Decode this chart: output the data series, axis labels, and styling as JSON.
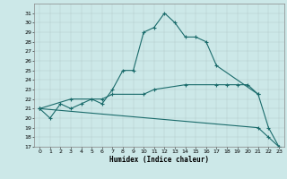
{
  "xlabel": "Humidex (Indice chaleur)",
  "xlim": [
    -0.5,
    23.5
  ],
  "ylim": [
    17,
    32
  ],
  "yticks": [
    17,
    18,
    19,
    20,
    21,
    22,
    23,
    24,
    25,
    26,
    27,
    28,
    29,
    30,
    31
  ],
  "xticks": [
    0,
    1,
    2,
    3,
    4,
    5,
    6,
    7,
    8,
    9,
    10,
    11,
    12,
    13,
    14,
    15,
    16,
    17,
    18,
    19,
    20,
    21,
    22,
    23
  ],
  "bg_color": "#cce8e8",
  "line_color": "#1a6b6b",
  "grid_color": "#b0c8c8",
  "line1_x": [
    0,
    1,
    2,
    3,
    4,
    5,
    6,
    7,
    8,
    9,
    10,
    11,
    12,
    13,
    14,
    15,
    16,
    17,
    21,
    22,
    23
  ],
  "line1_y": [
    21.0,
    20.0,
    21.5,
    21.0,
    21.5,
    22.0,
    21.5,
    23.0,
    25.0,
    25.0,
    29.0,
    29.5,
    31.0,
    30.0,
    28.5,
    28.5,
    28.0,
    25.5,
    22.5,
    19.0,
    17.0
  ],
  "line2_x": [
    0,
    3,
    6,
    7,
    10,
    11,
    14,
    17,
    18,
    19,
    20,
    21
  ],
  "line2_y": [
    21.0,
    22.0,
    22.0,
    22.5,
    22.5,
    23.0,
    23.5,
    23.5,
    23.5,
    23.5,
    23.5,
    22.5
  ],
  "line3_x": [
    0,
    21,
    22,
    23
  ],
  "line3_y": [
    21.0,
    19.0,
    18.0,
    17.0
  ]
}
